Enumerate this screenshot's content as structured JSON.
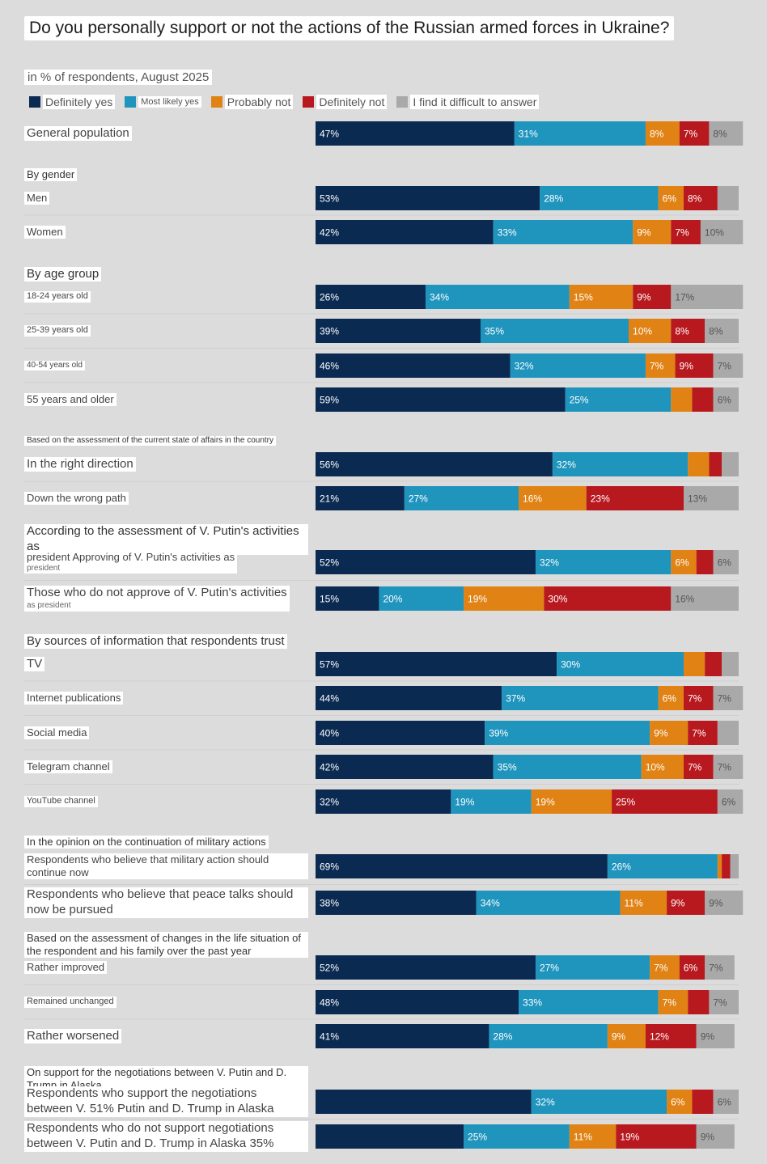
{
  "title": "Do you personally support or not the actions of the Russian armed forces in Ukraine?",
  "subtitle": "in % of respondents, August 2025",
  "legend": [
    {
      "label": "Definitely yes",
      "color": "#0b2a52"
    },
    {
      "label": "Most likely yes",
      "color": "#1f94bd"
    },
    {
      "label": "Probably not",
      "color": "#e08214"
    },
    {
      "label": "Definitely not",
      "color": "#b8191f"
    },
    {
      "label": "I find it difficult to answer",
      "color": "#a9a9a9"
    }
  ],
  "groups": [
    {
      "key": "gender",
      "label": "By gender"
    },
    {
      "key": "age",
      "label": "By age group"
    },
    {
      "key": "affairs",
      "label": "Based on the assessment of the current state of affairs in the country"
    },
    {
      "key": "putin",
      "label": "According to the assessment of V. Putin's activities as"
    },
    {
      "key": "sources",
      "label": "By sources of information that respondents trust"
    },
    {
      "key": "military",
      "label": "In the opinion on the continuation of military actions"
    },
    {
      "key": "life",
      "label": "Based on the assessment of changes in the life situation of the respondent and his family over the past year"
    },
    {
      "key": "negotiations",
      "label": "On support for the negotiations between V. Putin and D. Trump in Alaska"
    }
  ],
  "rows": [
    {
      "label": "General population",
      "note": ""
    },
    {
      "label": "Men",
      "note": ""
    },
    {
      "label": "Women",
      "note": ""
    },
    {
      "label": "18-24 years old",
      "note": ""
    },
    {
      "label": "25-39 years old",
      "note": ""
    },
    {
      "label": "40-54 years old",
      "note": ""
    },
    {
      "label": "55 years and older",
      "note": ""
    },
    {
      "label": "In the right direction",
      "note": ""
    },
    {
      "label": "Down the wrong path",
      "note": ""
    },
    {
      "label": "president Approving of V. Putin's activities as",
      "note": "president"
    },
    {
      "label": "Those who do not approve of V. Putin's activities",
      "note": "as president"
    },
    {
      "label": "TV",
      "note": ""
    },
    {
      "label": "Internet publications",
      "note": ""
    },
    {
      "label": "Social media",
      "note": ""
    },
    {
      "label": "Telegram channel",
      "note": ""
    },
    {
      "label": "YouTube channel",
      "note": ""
    },
    {
      "label": "Respondents who believe that military action should continue now",
      "note": ""
    },
    {
      "label": "Respondents who believe that peace talks should now be pursued",
      "note": ""
    },
    {
      "label": "Rather improved",
      "note": ""
    },
    {
      "label": "Remained unchanged",
      "note": ""
    },
    {
      "label": "Rather worsened",
      "note": ""
    },
    {
      "label": "Respondents who support the negotiations between V. 51% Putin and D. Trump in Alaska",
      "note": ""
    },
    {
      "label": "Respondents who do not support negotiations between V. Putin and D. Trump in Alaska 35%",
      "note": ""
    }
  ],
  "chart_data": {
    "type": "bar",
    "orientation": "horizontal",
    "stacked": true,
    "categories": [
      "General population",
      "Men",
      "Women",
      "18-24 years old",
      "25-39 years old",
      "40-54 years old",
      "55 years and older",
      "In the right direction",
      "Down the wrong path",
      "president Approving of V. Putin's activities as president",
      "Those who do not approve of V. Putin's activities as president",
      "TV",
      "Internet publications",
      "Social media",
      "Telegram channel",
      "YouTube channel",
      "Respondents who believe that military action should continue now",
      "Respondents who believe that peace talks should now be pursued",
      "Rather improved",
      "Remained unchanged",
      "Rather worsened",
      "Respondents who support the negotiations between V. 51% Putin and D. Trump in Alaska",
      "Respondents who do not support negotiations between V. Putin and D. Trump in Alaska 35%"
    ],
    "series": [
      {
        "name": "Definitely yes",
        "color": "#0b2a52",
        "values": [
          47,
          53,
          42,
          26,
          39,
          46,
          59,
          56,
          21,
          52,
          15,
          57,
          44,
          40,
          42,
          32,
          69,
          38,
          52,
          48,
          41,
          51,
          35
        ],
        "labels": [
          "47%",
          "53%",
          "42%",
          "26%",
          "39%",
          "46%",
          "59%",
          "56%",
          "21%",
          "52%",
          "15%",
          "57%",
          "44%",
          "40%",
          "42%",
          "32%",
          "69%",
          "38%",
          "52%",
          "48%",
          "41%",
          "",
          ""
        ]
      },
      {
        "name": "Most likely yes",
        "color": "#1f94bd",
        "values": [
          31,
          28,
          33,
          34,
          35,
          32,
          25,
          32,
          27,
          32,
          20,
          30,
          37,
          39,
          35,
          19,
          26,
          34,
          27,
          33,
          28,
          32,
          25
        ],
        "labels": [
          "31%",
          "28%",
          "33%",
          "34%",
          "35%",
          "32%",
          "25%",
          "32%",
          "27%",
          "32%",
          "20%",
          "30%",
          "37%",
          "39%",
          "35%",
          "19%",
          "26%",
          "34%",
          "27%",
          "33%",
          "28%",
          "32%",
          "25%"
        ]
      },
      {
        "name": "Probably not",
        "color": "#e08214",
        "values": [
          8,
          6,
          9,
          15,
          10,
          7,
          5,
          5,
          16,
          6,
          19,
          5,
          6,
          9,
          10,
          19,
          1,
          11,
          7,
          7,
          9,
          6,
          11
        ],
        "labels": [
          "8%",
          "6%",
          "9%",
          "15%",
          "10%",
          "7%",
          "",
          "",
          "16%",
          "6%",
          "19%",
          "",
          "6%",
          "9%",
          "10%",
          "19%",
          "",
          "11%",
          "7%",
          "7%",
          "9%",
          "6%",
          "11%"
        ]
      },
      {
        "name": "Definitely not",
        "color": "#b8191f",
        "values": [
          7,
          8,
          7,
          9,
          8,
          9,
          5,
          3,
          23,
          4,
          30,
          4,
          7,
          7,
          7,
          25,
          2,
          9,
          6,
          5,
          12,
          5,
          19
        ],
        "labels": [
          "7%",
          "8%",
          "7%",
          "9%",
          "8%",
          "9%",
          "",
          "",
          "23%",
          "",
          "30%",
          "",
          "7%",
          "7%",
          "7%",
          "25%",
          "",
          "9%",
          "6%",
          "",
          "12%",
          "",
          "19%"
        ]
      },
      {
        "name": "I find it difficult to answer",
        "color": "#a9a9a9",
        "values": [
          8,
          5,
          10,
          17,
          8,
          7,
          6,
          4,
          13,
          6,
          16,
          4,
          7,
          5,
          7,
          6,
          2,
          9,
          7,
          7,
          9,
          6,
          9
        ],
        "labels": [
          "8%",
          "",
          "10%",
          "17%",
          "8%",
          "7%",
          "6%",
          "",
          "13%",
          "6%",
          "16%",
          "",
          "7%",
          "",
          "7%",
          "6%",
          "",
          "9%",
          "7%",
          "7%",
          "9%",
          "6%",
          "9%"
        ]
      }
    ],
    "xlim": [
      0,
      100
    ],
    "legend_position": "top-left",
    "grid": false
  }
}
